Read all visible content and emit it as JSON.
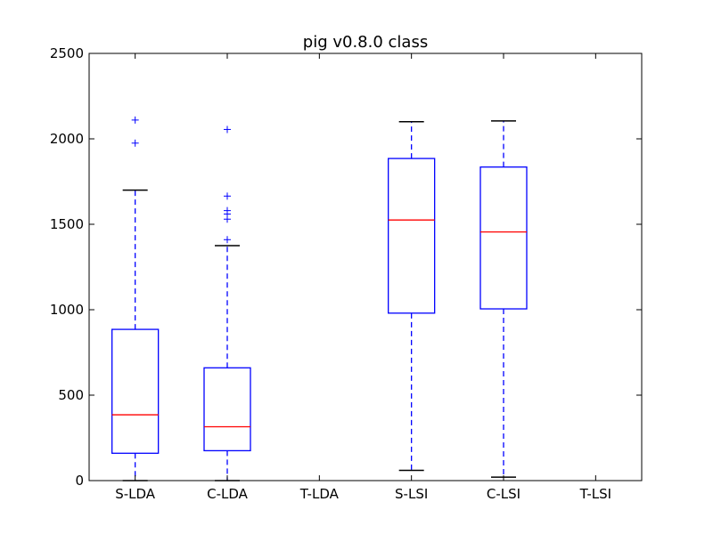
{
  "chart_data": {
    "type": "boxplot",
    "title": "pig v0.8.0 class",
    "xlabel": "",
    "ylabel": "",
    "ylim": [
      0,
      2500
    ],
    "yticks": [
      0,
      500,
      1000,
      1500,
      2000,
      2500
    ],
    "grid": false,
    "categories": [
      "S-LDA",
      "C-LDA",
      "T-LDA",
      "S-LSI",
      "C-LSI",
      "T-LSI"
    ],
    "boxes": [
      {
        "category": "S-LDA",
        "whisker_low": 0,
        "q1": 160,
        "median": 385,
        "q3": 885,
        "whisker_high": 1700,
        "outliers": [
          1975,
          2110
        ]
      },
      {
        "category": "C-LDA",
        "whisker_low": 0,
        "q1": 175,
        "median": 315,
        "q3": 660,
        "whisker_high": 1375,
        "outliers": [
          1410,
          1530,
          1560,
          1580,
          1665,
          2055
        ]
      },
      {
        "category": "T-LDA",
        "whisker_low": null,
        "q1": null,
        "median": null,
        "q3": null,
        "whisker_high": null,
        "outliers": []
      },
      {
        "category": "S-LSI",
        "whisker_low": 60,
        "q1": 980,
        "median": 1525,
        "q3": 1885,
        "whisker_high": 2100,
        "outliers": []
      },
      {
        "category": "C-LSI",
        "whisker_low": 20,
        "q1": 1005,
        "median": 1455,
        "q3": 1835,
        "whisker_high": 2105,
        "outliers": []
      },
      {
        "category": "T-LSI",
        "whisker_low": null,
        "q1": null,
        "median": null,
        "q3": null,
        "whisker_high": null,
        "outliers": []
      }
    ],
    "colors": {
      "box": "#0000ff",
      "median": "#ff0000",
      "whisker": "#0000ff",
      "cap": "#000000",
      "outlier": "#0000ff"
    }
  }
}
